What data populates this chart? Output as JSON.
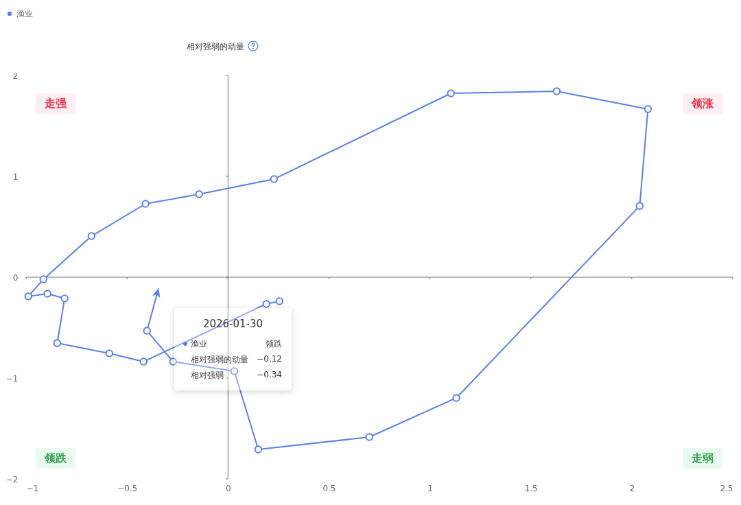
{
  "chart_data": {
    "type": "line",
    "ylabel": "相对强弱的动量",
    "xlim": [
      -1,
      2.5
    ],
    "ylim": [
      -2,
      2
    ],
    "xticks": [
      -1,
      -0.5,
      0,
      0.5,
      1,
      1.5,
      2,
      2.5
    ],
    "yticks": [
      -2,
      -1,
      0,
      1,
      2
    ],
    "legend": "top left",
    "marker": "circle",
    "line_style": "solid",
    "series": [
      {
        "name": "渔业",
        "color": "#5b7fe6",
        "x": [
          0.255,
          0.19,
          -0.418,
          -0.588,
          -0.846,
          -0.809,
          -0.894,
          -0.989,
          -0.914,
          -0.676,
          -0.408,
          -0.143,
          0.228,
          1.104,
          1.628,
          2.08,
          2.039,
          1.131,
          0.7,
          0.15,
          0.031,
          -0.272,
          -0.401,
          -0.35
        ],
        "values": [
          -0.238,
          -0.265,
          -0.837,
          -0.755,
          -0.653,
          -0.211,
          -0.163,
          -0.19,
          -0.02,
          0.408,
          0.728,
          0.823,
          0.973,
          1.823,
          1.844,
          1.667,
          0.707,
          -1.197,
          -1.585,
          -1.707,
          -0.932,
          -0.837,
          -0.531,
          -0.156
        ]
      }
    ],
    "annotations": [
      "走强",
      "领涨",
      "领跌",
      "走弱",
      "2026-01-30",
      "渔业",
      "领跌",
      "相对强弱的动量",
      "−0.12",
      "相对强弱",
      "−0.34"
    ]
  }
}
